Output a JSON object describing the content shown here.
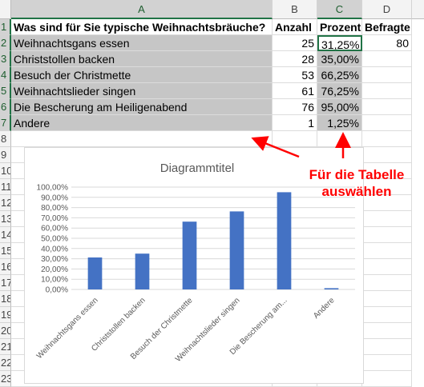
{
  "columns": [
    "A",
    "B",
    "C",
    "D"
  ],
  "row_numbers": [
    "1",
    "2",
    "3",
    "4",
    "5",
    "6",
    "7",
    "8",
    "9",
    "10",
    "11",
    "12",
    "13",
    "14",
    "15",
    "16",
    "17",
    "18",
    "19",
    "20",
    "21",
    "22",
    "23"
  ],
  "headers": {
    "question": "Was sind für Sie typische Weihnachtsbräuche?",
    "count": "Anzahl",
    "percent": "Prozent",
    "respondents": "Befragte"
  },
  "rows": [
    {
      "label": "Weihnachtsgans essen",
      "count": "25",
      "percent": "31,25%"
    },
    {
      "label": "Christstollen backen",
      "count": "28",
      "percent": "35,00%"
    },
    {
      "label": "Besuch der Christmette",
      "count": "53",
      "percent": "66,25%"
    },
    {
      "label": "Weihnachtslieder singen",
      "count": "61",
      "percent": "76,25%"
    },
    {
      "label": "Die Bescherung am Heiligenabend",
      "count": "76",
      "percent": "95,00%"
    },
    {
      "label": "Andere",
      "count": "1",
      "percent": "1,25%"
    }
  ],
  "respondents_value": "80",
  "annotation": {
    "line1": "Für die Tabelle",
    "line2": "auswählen"
  },
  "colors": {
    "bar": "#4472c4",
    "annotation": "#ff0000",
    "selection": "#c6c6c6",
    "accent": "#217346"
  },
  "chart_data": {
    "type": "bar",
    "title": "Diagrammtitel",
    "categories": [
      "Weihnachtsgans essen",
      "Christstollen backen",
      "Besuch der Christmette",
      "Weihnachtslieder singen",
      "Die Bescherung am...",
      "Andere"
    ],
    "values": [
      31.25,
      35.0,
      66.25,
      76.25,
      95.0,
      1.25
    ],
    "ylim": [
      0,
      100
    ],
    "yticks": [
      "0,00%",
      "10,00%",
      "20,00%",
      "30,00%",
      "40,00%",
      "50,00%",
      "60,00%",
      "70,00%",
      "80,00%",
      "90,00%",
      "100,00%"
    ],
    "grid": true
  }
}
